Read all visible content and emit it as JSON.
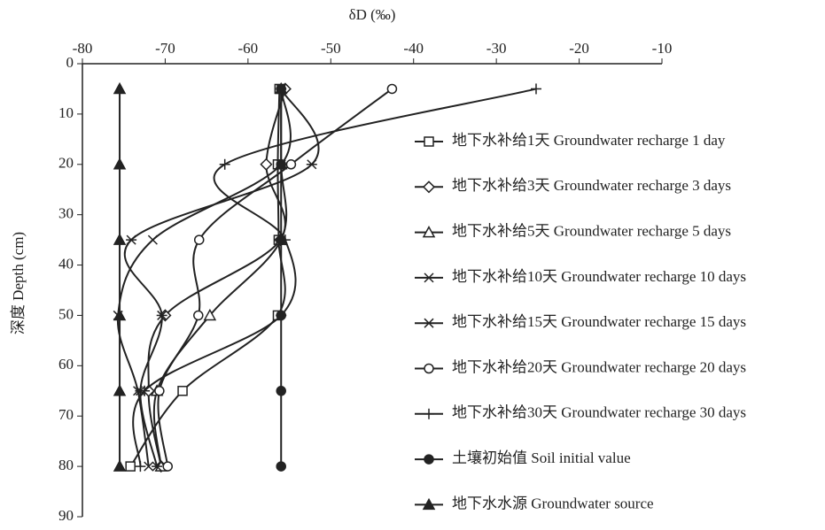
{
  "chart_data": {
    "type": "line",
    "x_label": "δD (‰)",
    "y_label": "深度 Depth (cm)",
    "xlim": [
      -80,
      -10
    ],
    "xticks": [
      -80,
      -70,
      -60,
      -50,
      -40,
      -30,
      -20,
      -10
    ],
    "ylim": [
      0,
      90
    ],
    "yticks": [
      0,
      10,
      20,
      30,
      40,
      50,
      60,
      70,
      80,
      90
    ],
    "y_inverted": true,
    "y": [
      5,
      20,
      35,
      50,
      65,
      80
    ],
    "series": [
      {
        "name": "地下水补给1天 Groundwater recharge 1 day",
        "marker": "square",
        "color": "#222222",
        "values": [
          -56.2,
          -56.4,
          -56.3,
          -56.4,
          -67.9,
          -74.2
        ]
      },
      {
        "name": "地下水补给3天 Groundwater recharge 3 days",
        "marker": "diamond",
        "color": "#222222",
        "values": [
          -55.5,
          -57.8,
          -56.1,
          -70,
          -72,
          -70.5
        ]
      },
      {
        "name": "地下水补给5天 Groundwater recharge 5 days",
        "marker": "triangle",
        "color": "#222222",
        "values": [
          -56,
          -56,
          -56,
          -64.6,
          -71,
          -70.5
        ]
      },
      {
        "name": "地下水补给10天 Groundwater recharge 10 days",
        "marker": "x",
        "color": "#222222",
        "values": [
          -56,
          -56,
          -71.5,
          -75.7,
          -73.3,
          -72
        ]
      },
      {
        "name": "地下水补给15天 Groundwater recharge 15 days",
        "marker": "star",
        "color": "#222222",
        "values": [
          -56,
          -52.3,
          -74.1,
          -70.4,
          -73,
          -71
        ]
      },
      {
        "name": "地下水补给20天 Groundwater recharge 20 days",
        "marker": "circle",
        "color": "#222222",
        "values": [
          -42.6,
          -54.8,
          -65.9,
          -66,
          -70.7,
          -69.7
        ]
      },
      {
        "name": "地下水补给30天 Groundwater recharge 30 days",
        "marker": "plus",
        "color": "#222222",
        "values": [
          -25.2,
          -62.8,
          -55.5,
          -56,
          -72.5,
          -73
        ]
      },
      {
        "name": "土壤初始值 Soil initial value",
        "marker": "dot",
        "color": "#222222",
        "values": [
          -56,
          -56,
          -56,
          -56,
          -56,
          -56
        ]
      },
      {
        "name": "地下水水源 Groundwater source",
        "marker": "filled-triangle",
        "color": "#222222",
        "values": [
          -75.5,
          -75.5,
          -75.5,
          -75.5,
          -75.5,
          -75.5
        ]
      }
    ]
  }
}
